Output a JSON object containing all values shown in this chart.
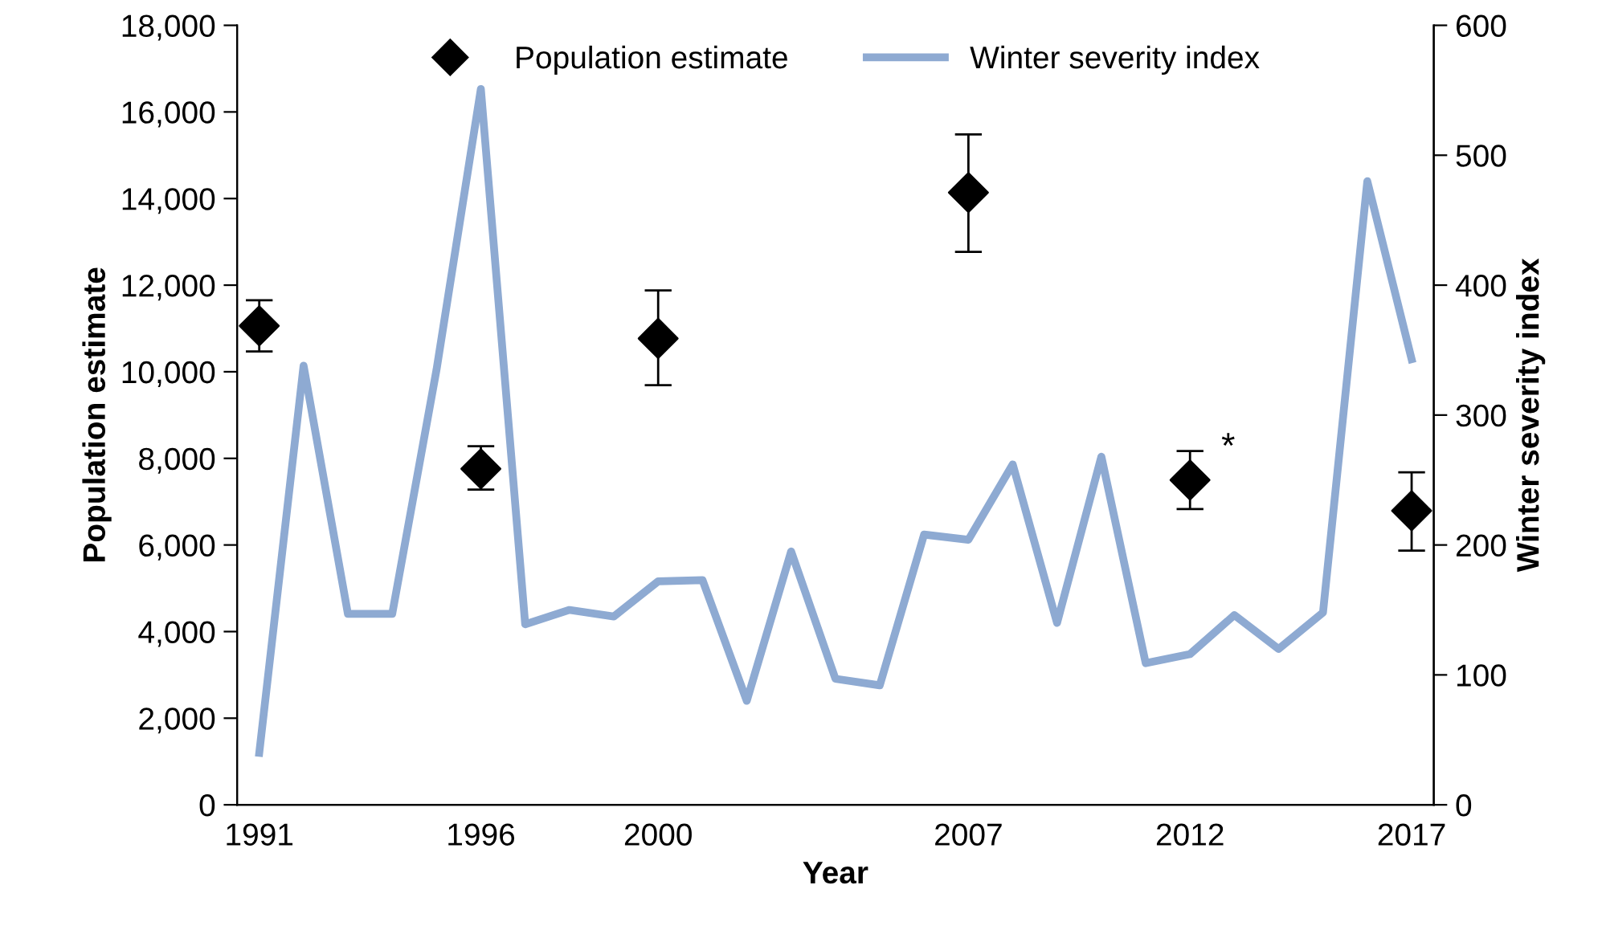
{
  "chart_data": {
    "type": "scatter",
    "xlabel": "Year",
    "ylabel": "Population estimate",
    "y2label": "Winter severity index",
    "xlim": [
      1990.5,
      2017.5
    ],
    "xticks": [
      1991,
      1996,
      2000,
      2007,
      2012,
      2017
    ],
    "ylim": [
      0,
      18000
    ],
    "yticks": [
      {
        "value": 0,
        "label": "0"
      },
      {
        "value": 2000,
        "label": "2,000"
      },
      {
        "value": 4000,
        "label": "4,000"
      },
      {
        "value": 6000,
        "label": "6,000"
      },
      {
        "value": 8000,
        "label": "8,000"
      },
      {
        "value": 10000,
        "label": "10,000"
      },
      {
        "value": 12000,
        "label": "12,000"
      },
      {
        "value": 14000,
        "label": "14,000"
      },
      {
        "value": 16000,
        "label": "16,000"
      },
      {
        "value": 18000,
        "label": "18,000"
      }
    ],
    "y2lim": [
      0,
      600
    ],
    "y2ticks": [
      0,
      100,
      200,
      300,
      400,
      500,
      600
    ],
    "grid": false,
    "legend": "top",
    "series": [
      {
        "name": "Population estimate",
        "color": "#000000",
        "marker": "diamond",
        "x": [
          1991,
          1996,
          2000,
          2007,
          2012,
          2017
        ],
        "values": [
          11060,
          7760,
          10770,
          14140,
          7500,
          6790
        ],
        "errors": [
          [
            10470,
            11650
          ],
          [
            7280,
            8280
          ],
          [
            9690,
            11880
          ],
          [
            12770,
            15480
          ],
          [
            6830,
            8170
          ],
          [
            5870,
            7680
          ]
        ]
      },
      {
        "name": "Winter severity index",
        "type": "line",
        "axis": "y2",
        "color": "#8eaad2",
        "marker": "none",
        "line_style": "solid",
        "x": [
          1991,
          1992,
          1993,
          1994,
          1995,
          1996,
          1997,
          1998,
          1999,
          2000,
          2001,
          2002,
          2003,
          2004,
          2005,
          2006,
          2007,
          2008,
          2009,
          2010,
          2011,
          2012,
          2013,
          2014,
          2015,
          2016,
          2017
        ],
        "values": [
          40,
          338,
          147,
          147,
          335,
          551,
          139,
          150,
          145,
          172,
          173,
          80,
          195,
          97,
          92,
          208,
          204,
          262,
          140,
          268,
          109,
          116,
          146,
          120,
          148,
          480,
          343
        ]
      }
    ],
    "annotations": [
      {
        "text": "*",
        "x": 2012,
        "y": 7500
      }
    ]
  }
}
